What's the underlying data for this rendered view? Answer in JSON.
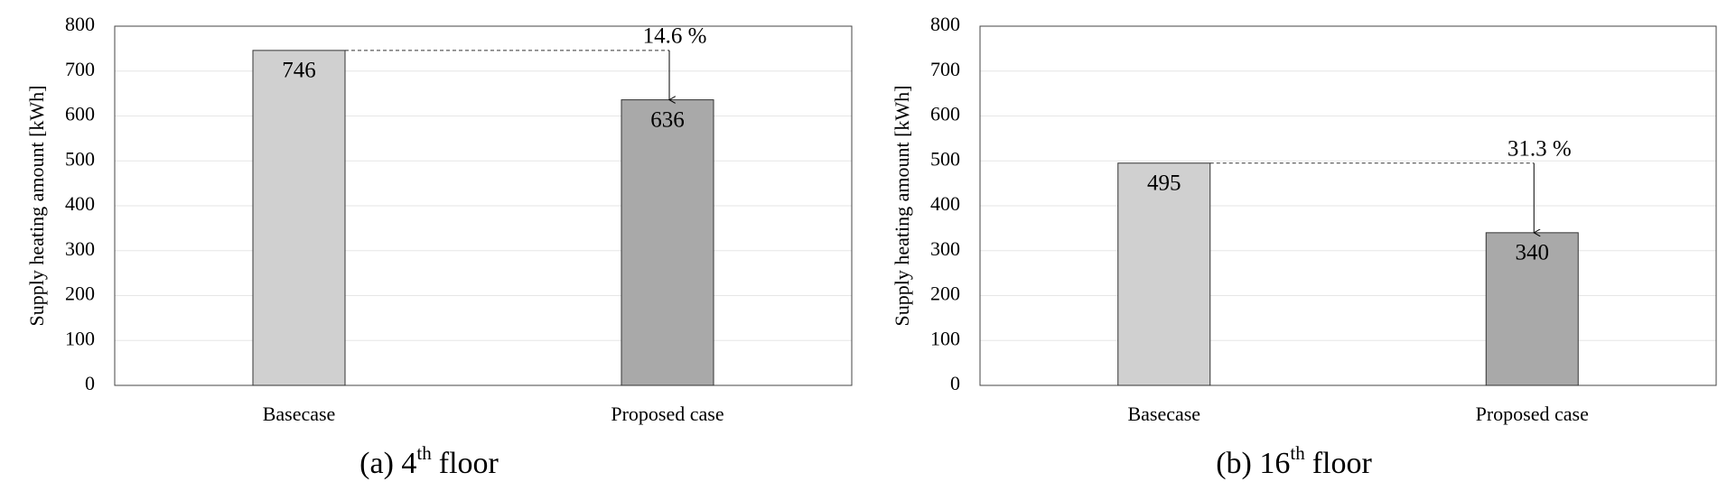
{
  "chart_data": [
    {
      "type": "bar",
      "caption": [
        "(a) 4",
        "th",
        "floor"
      ],
      "ylabel": "Supply heating amount [kWh]",
      "categories": [
        "Basecase",
        "Proposed case"
      ],
      "values": [
        746,
        636
      ],
      "colors": [
        "#d0d0d0",
        "#a9a9a9"
      ],
      "annotation": "14.6 %",
      "ylim": [
        0,
        800
      ],
      "yticks": [
        0,
        100,
        200,
        300,
        400,
        500,
        600,
        700,
        800
      ],
      "grid": true
    },
    {
      "type": "bar",
      "caption": [
        "(b) 16",
        "th",
        "floor"
      ],
      "ylabel": "Supply heating amount [kWh]",
      "categories": [
        "Basecase",
        "Proposed case"
      ],
      "values": [
        495,
        340
      ],
      "colors": [
        "#d0d0d0",
        "#a9a9a9"
      ],
      "annotation": "31.3 %",
      "ylim": [
        0,
        800
      ],
      "yticks": [
        0,
        100,
        200,
        300,
        400,
        500,
        600,
        700,
        800
      ],
      "grid": true
    }
  ]
}
